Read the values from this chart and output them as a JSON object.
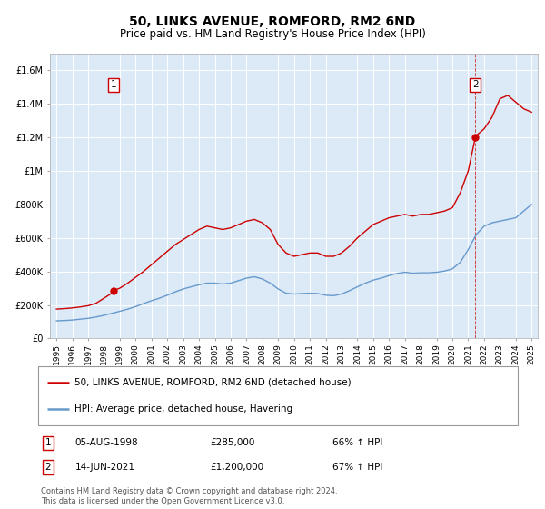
{
  "title": "50, LINKS AVENUE, ROMFORD, RM2 6ND",
  "subtitle": "Price paid vs. HM Land Registry's House Price Index (HPI)",
  "background_color": "#dce9f7",
  "plot_bg_color": "#dce9f7",
  "ylim": [
    0,
    1700000
  ],
  "yticks": [
    0,
    200000,
    400000,
    600000,
    800000,
    1000000,
    1200000,
    1400000,
    1600000
  ],
  "ytick_labels": [
    "£0",
    "£200K",
    "£400K",
    "£600K",
    "£800K",
    "£1M",
    "£1.2M",
    "£1.4M",
    "£1.6M"
  ],
  "legend_line1": "50, LINKS AVENUE, ROMFORD, RM2 6ND (detached house)",
  "legend_line2": "HPI: Average price, detached house, Havering",
  "red_line_color": "#cc0000",
  "blue_line_color": "#6699cc",
  "marker1_year": 1998.59,
  "marker1_price": 285000,
  "marker2_year": 2021.45,
  "marker2_price": 1200000,
  "footnote": "Contains HM Land Registry data © Crown copyright and database right 2024.\nThis data is licensed under the Open Government Licence v3.0.",
  "red_x": [
    1995.0,
    1995.5,
    1996.0,
    1996.5,
    1997.0,
    1997.5,
    1998.0,
    1998.5,
    1998.59,
    1999.0,
    1999.5,
    2000.0,
    2000.5,
    2001.0,
    2001.5,
    2002.0,
    2002.5,
    2003.0,
    2003.5,
    2004.0,
    2004.5,
    2005.0,
    2005.5,
    2006.0,
    2006.5,
    2007.0,
    2007.5,
    2008.0,
    2008.5,
    2009.0,
    2009.5,
    2010.0,
    2010.5,
    2011.0,
    2011.5,
    2012.0,
    2012.5,
    2013.0,
    2013.5,
    2014.0,
    2014.5,
    2015.0,
    2015.5,
    2016.0,
    2016.5,
    2017.0,
    2017.5,
    2018.0,
    2018.5,
    2019.0,
    2019.5,
    2020.0,
    2020.5,
    2021.0,
    2021.45,
    2021.5,
    2022.0,
    2022.5,
    2023.0,
    2023.5,
    2024.0,
    2024.5,
    2025.0
  ],
  "red_y": [
    175000,
    178000,
    182000,
    188000,
    195000,
    210000,
    240000,
    270000,
    285000,
    300000,
    330000,
    365000,
    400000,
    440000,
    480000,
    520000,
    560000,
    590000,
    620000,
    650000,
    670000,
    660000,
    650000,
    660000,
    680000,
    700000,
    710000,
    690000,
    650000,
    560000,
    510000,
    490000,
    500000,
    510000,
    510000,
    490000,
    490000,
    510000,
    550000,
    600000,
    640000,
    680000,
    700000,
    720000,
    730000,
    740000,
    730000,
    740000,
    740000,
    750000,
    760000,
    780000,
    870000,
    1000000,
    1200000,
    1210000,
    1250000,
    1320000,
    1430000,
    1450000,
    1410000,
    1370000,
    1350000
  ],
  "blue_x": [
    1995.0,
    1995.5,
    1996.0,
    1996.5,
    1997.0,
    1997.5,
    1998.0,
    1998.5,
    1999.0,
    1999.5,
    2000.0,
    2000.5,
    2001.0,
    2001.5,
    2002.0,
    2002.5,
    2003.0,
    2003.5,
    2004.0,
    2004.5,
    2005.0,
    2005.5,
    2006.0,
    2006.5,
    2007.0,
    2007.5,
    2008.0,
    2008.5,
    2009.0,
    2009.5,
    2010.0,
    2010.5,
    2011.0,
    2011.5,
    2012.0,
    2012.5,
    2013.0,
    2013.5,
    2014.0,
    2014.5,
    2015.0,
    2015.5,
    2016.0,
    2016.5,
    2017.0,
    2017.5,
    2018.0,
    2018.5,
    2019.0,
    2019.5,
    2020.0,
    2020.5,
    2021.0,
    2021.5,
    2022.0,
    2022.5,
    2023.0,
    2023.5,
    2024.0,
    2024.5,
    2025.0
  ],
  "blue_y": [
    105000,
    107000,
    110000,
    115000,
    120000,
    128000,
    138000,
    150000,
    162000,
    175000,
    190000,
    208000,
    225000,
    240000,
    258000,
    278000,
    295000,
    308000,
    320000,
    330000,
    330000,
    325000,
    330000,
    345000,
    360000,
    368000,
    355000,
    330000,
    295000,
    270000,
    265000,
    268000,
    270000,
    268000,
    258000,
    255000,
    265000,
    285000,
    308000,
    330000,
    348000,
    360000,
    375000,
    388000,
    395000,
    390000,
    392000,
    392000,
    395000,
    402000,
    415000,
    455000,
    530000,
    620000,
    670000,
    690000,
    700000,
    710000,
    720000,
    760000,
    800000
  ]
}
